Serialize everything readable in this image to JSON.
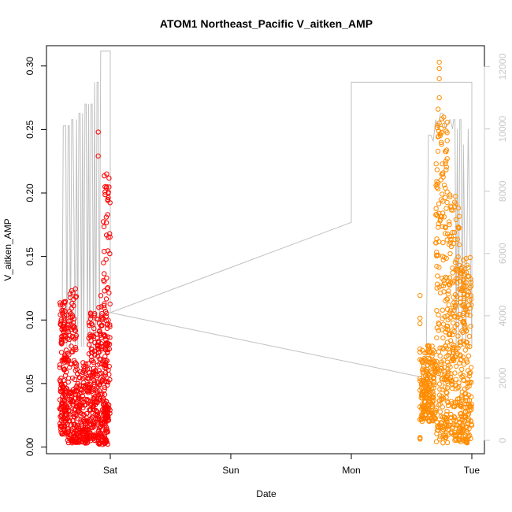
{
  "chart_data": {
    "type": "scatter",
    "title": "ATOM1 Northeast_Pacific V_aitken_AMP",
    "xlabel": "Date",
    "ylabel": "V_aitken_AMP",
    "x_ticks": [
      "Sat",
      "Sun",
      "Mon",
      "Tue"
    ],
    "y_ticks": [
      "0.00",
      "0.05",
      "0.10",
      "0.15",
      "0.20",
      "0.25",
      "0.30"
    ],
    "y2_ticks": [
      "0",
      "2000",
      "4000",
      "6000",
      "8000",
      "10000",
      "12000"
    ],
    "xlim": [
      -0.45,
      3.1
    ],
    "ylim": [
      -0.008,
      0.31
    ],
    "y2lim": [
      -300,
      12900
    ],
    "colors": {
      "series1": "#ff0000",
      "series2": "#ff8c00",
      "altitude_line": "#c0c0c0",
      "right_axis": "#c8c8c8"
    },
    "series": [
      {
        "color": "#ff0000",
        "clusters": [
          {
            "x": [
              -0.42,
              -0.36
            ],
            "y": [
              0.01,
              0.115
            ],
            "n": 160
          },
          {
            "x": [
              -0.36,
              -0.28
            ],
            "y": [
              0.003,
              0.125
            ],
            "n": 150
          },
          {
            "x": [
              -0.28,
              -0.18
            ],
            "y": [
              0.003,
              0.07
            ],
            "n": 150
          },
          {
            "x": [
              -0.18,
              -0.1
            ],
            "y": [
              0.005,
              0.11
            ],
            "n": 150
          },
          {
            "x": [
              -0.1,
              -0.02
            ],
            "y": [
              0.002,
              0.12
            ],
            "n": 170
          },
          {
            "x": [
              -0.06,
              0.0
            ],
            "y": [
              0.02,
              0.215
            ],
            "n": 90
          }
        ],
        "points": [
          {
            "x": -0.1,
            "y": 0.248
          },
          {
            "x": -0.1,
            "y": 0.229
          },
          {
            "x": -0.03,
            "y": 0.205
          },
          {
            "x": -0.03,
            "y": 0.215
          },
          {
            "x": -0.02,
            "y": 0.195
          }
        ]
      },
      {
        "color": "#ff8c00",
        "clusters": [
          {
            "x": 2.57,
            "y": [
              0.005,
              0.122
            ],
            "n": 14
          },
          {
            "x": [
              2.58,
              2.7
            ],
            "y": [
              0.02,
              0.08
            ],
            "n": 200
          },
          {
            "x": [
              2.7,
              2.8
            ],
            "y": [
              0.003,
              0.26
            ],
            "n": 220
          },
          {
            "x": [
              2.8,
              2.9
            ],
            "y": [
              0.005,
              0.2
            ],
            "n": 180
          },
          {
            "x": [
              2.9,
              3.0
            ],
            "y": [
              0.003,
              0.15
            ],
            "n": 200
          }
        ],
        "points": [
          {
            "x": 2.73,
            "y": 0.303
          },
          {
            "x": 2.73,
            "y": 0.298
          },
          {
            "x": 2.73,
            "y": 0.29
          },
          {
            "x": 2.73,
            "y": 0.275
          },
          {
            "x": 2.72,
            "y": 0.266
          },
          {
            "x": 2.73,
            "y": 0.255
          },
          {
            "x": 2.72,
            "y": 0.208
          },
          {
            "x": 2.72,
            "y": 0.173
          }
        ]
      }
    ],
    "altitude_line": {
      "axis": "right",
      "x": [
        -0.4,
        -0.39,
        -0.37,
        -0.36,
        -0.35,
        -0.34,
        -0.33,
        -0.32,
        -0.31,
        -0.29,
        -0.28,
        -0.27,
        -0.26,
        -0.25,
        -0.24,
        -0.23,
        -0.22,
        -0.21,
        -0.2,
        -0.19,
        -0.18,
        -0.17,
        -0.16,
        -0.15,
        -0.14,
        -0.13,
        -0.12,
        -0.11,
        -0.1,
        -0.09,
        -0.08,
        -0.06,
        -0.06,
        0.0,
        0.0,
        2.0,
        2.0,
        2.0,
        3.0,
        3.0,
        2.97,
        2.95,
        2.93,
        2.92,
        2.91,
        2.9,
        2.89,
        2.88,
        2.87,
        2.86,
        2.85,
        2.84,
        2.82,
        2.78,
        2.76,
        2.74,
        2.72,
        2.7,
        2.68,
        2.66,
        2.64,
        2.62,
        0.0
      ],
      "y": [
        3000,
        10100,
        10100,
        3000,
        10100,
        10100,
        3000,
        10300,
        10300,
        3000,
        10300,
        3000,
        10500,
        10500,
        3000,
        10500,
        3000,
        10800,
        10800,
        3000,
        10800,
        3000,
        10800,
        10800,
        3000,
        11500,
        3000,
        11500,
        11500,
        3000,
        12500,
        12500,
        12500,
        12500,
        4100,
        7000,
        11500,
        11500,
        11500,
        3000,
        10000,
        3000,
        9500,
        3000,
        10300,
        10300,
        3000,
        10000,
        3000,
        10300,
        10300,
        10000,
        10300,
        10000,
        10500,
        10500,
        10000,
        10300,
        9600,
        9800,
        9800,
        2000,
        4100
      ]
    }
  }
}
